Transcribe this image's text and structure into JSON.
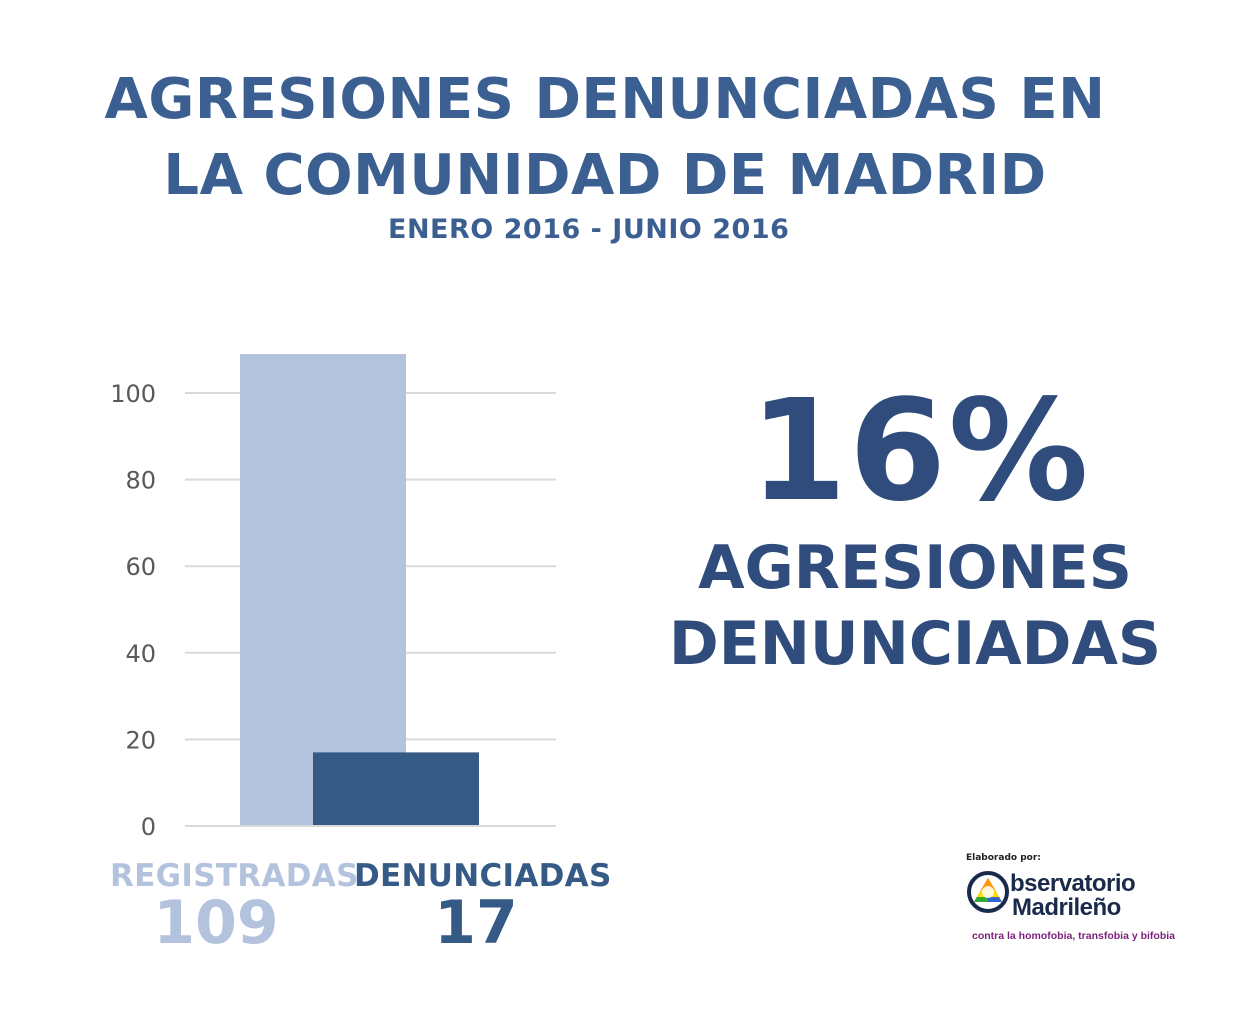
{
  "header": {
    "title_line1": "AGRESIONES DENUNCIADAS EN",
    "title_line2": "LA COMUNIDAD DE MADRID",
    "subtitle": "ENERO 2016 - JUNIO 2016"
  },
  "chart_data": {
    "type": "bar",
    "categories": [
      "REGISTRADAS",
      "DENUNCIADAS"
    ],
    "values": [
      109,
      17
    ],
    "colors": [
      "#b4c3dd",
      "#365a86"
    ],
    "yticks": [
      0,
      20,
      40,
      60,
      80,
      100
    ],
    "ylim": [
      0,
      100
    ],
    "grid": true,
    "value_labels": [
      "109",
      "17"
    ]
  },
  "highlight": {
    "percent": "16%",
    "caption_line1": "AGRESIONES",
    "caption_line2": "DENUNCIADAS"
  },
  "credit": {
    "label": "Elaborado por:",
    "logo_name_line1": "bservatorio",
    "logo_name_line2": "Madrileño",
    "logo_tagline": "contra la homofobia, transfobia y bifobia"
  },
  "colors": {
    "title": "#3b5f91",
    "highlight": "#2f4c7c",
    "registradas": "#b4c3dd",
    "denunciadas": "#365a86",
    "grid": "#d9d9d9",
    "tick_text": "#595959"
  }
}
